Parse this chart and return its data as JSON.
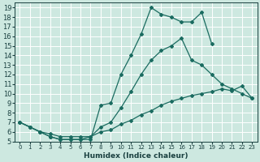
{
  "xlabel": "Humidex (Indice chaleur)",
  "background_color": "#cde8e0",
  "grid_color": "#b0d8cc",
  "line_color": "#1a6b60",
  "xlim": [
    -0.5,
    23.5
  ],
  "ylim": [
    5,
    19.5
  ],
  "xticks": [
    0,
    1,
    2,
    3,
    4,
    5,
    6,
    7,
    8,
    9,
    10,
    11,
    12,
    13,
    14,
    15,
    16,
    17,
    18,
    19,
    20,
    21,
    22,
    23
  ],
  "yticks": [
    5,
    6,
    7,
    8,
    9,
    10,
    11,
    12,
    13,
    14,
    15,
    16,
    17,
    18,
    19
  ],
  "line1_x": [
    0,
    1,
    2,
    3,
    4,
    5,
    6,
    7,
    8,
    9,
    10,
    11,
    12,
    13,
    14,
    15,
    16,
    17,
    18,
    19
  ],
  "line1_y": [
    7.0,
    6.5,
    6.0,
    5.5,
    5.2,
    5.2,
    5.2,
    5.2,
    8.8,
    9.0,
    12.0,
    14.0,
    16.2,
    19.0,
    18.3,
    18.0,
    17.5,
    17.5,
    18.5,
    15.2
  ],
  "line2_x": [
    0,
    1,
    2,
    3,
    4,
    5,
    6,
    7,
    8,
    9,
    10,
    11,
    12,
    13,
    14,
    15,
    16,
    17,
    18,
    19,
    20,
    21,
    22,
    23
  ],
  "line2_y": [
    7.0,
    6.5,
    6.0,
    5.5,
    5.2,
    5.2,
    5.2,
    5.5,
    6.5,
    7.0,
    8.5,
    10.2,
    12.0,
    13.5,
    14.5,
    15.0,
    15.8,
    13.5,
    13.0,
    12.0,
    11.0,
    10.5,
    10.0,
    9.5
  ],
  "line3_x": [
    0,
    1,
    2,
    3,
    4,
    5,
    6,
    7,
    8,
    9,
    10,
    11,
    12,
    13,
    14,
    15,
    16,
    17,
    18,
    19,
    20,
    21,
    22,
    23
  ],
  "line3_y": [
    7.0,
    6.5,
    6.0,
    5.8,
    5.5,
    5.5,
    5.5,
    5.5,
    6.0,
    6.2,
    6.8,
    7.2,
    7.8,
    8.2,
    8.8,
    9.2,
    9.5,
    9.8,
    10.0,
    10.2,
    10.5,
    10.3,
    10.8,
    9.5
  ]
}
